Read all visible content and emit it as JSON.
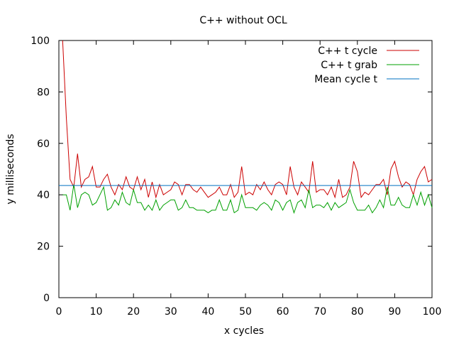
{
  "chart_data": {
    "type": "line",
    "title": "C++ without OCL",
    "xlabel": "x cycles",
    "ylabel": "y milliseconds",
    "xlim": [
      0,
      100
    ],
    "ylim": [
      0,
      100
    ],
    "xticks": [
      0,
      10,
      20,
      30,
      40,
      50,
      60,
      70,
      80,
      90,
      100
    ],
    "yticks": [
      0,
      20,
      40,
      60,
      80,
      100
    ],
    "legend_position": "top-right",
    "series": [
      {
        "name": "C++ t cycle",
        "color": "#cc0000",
        "kind": "line",
        "x": [
          1,
          2,
          3,
          4,
          5,
          6,
          7,
          8,
          9,
          10,
          11,
          12,
          13,
          14,
          15,
          16,
          17,
          18,
          19,
          20,
          21,
          22,
          23,
          24,
          25,
          26,
          27,
          28,
          29,
          30,
          31,
          32,
          33,
          34,
          35,
          36,
          37,
          38,
          39,
          40,
          41,
          42,
          43,
          44,
          45,
          46,
          47,
          48,
          49,
          50,
          51,
          52,
          53,
          54,
          55,
          56,
          57,
          58,
          59,
          60,
          61,
          62,
          63,
          64,
          65,
          66,
          67,
          68,
          69,
          70,
          71,
          72,
          73,
          74,
          75,
          76,
          77,
          78,
          79,
          80,
          81,
          82,
          83,
          84,
          85,
          86,
          87,
          88,
          89,
          90,
          91,
          92,
          93,
          94,
          95,
          96,
          97,
          98,
          99,
          100
        ],
        "y": [
          100,
          70,
          46,
          43,
          56,
          43,
          46,
          47,
          51,
          43,
          43,
          46,
          48,
          43,
          40,
          44,
          42,
          47,
          43,
          42,
          47,
          42,
          46,
          39,
          45,
          39,
          44,
          40,
          41,
          42,
          45,
          44,
          40,
          44,
          44,
          42,
          41,
          43,
          41,
          39,
          40,
          41,
          43,
          40,
          40,
          44,
          39,
          41,
          51,
          40,
          41,
          40,
          44,
          42,
          45,
          42,
          40,
          44,
          45,
          44,
          40,
          51,
          43,
          40,
          45,
          43,
          41,
          53,
          41,
          42,
          42,
          40,
          43,
          39,
          46,
          39,
          40,
          43,
          53,
          49,
          39,
          41,
          40,
          42,
          44,
          44,
          46,
          40,
          50,
          53,
          47,
          43,
          45,
          44,
          40,
          46,
          49,
          51,
          45,
          46
        ]
      },
      {
        "name": "C++ t grab",
        "color": "#00a000",
        "kind": "line",
        "x": [
          1,
          2,
          3,
          4,
          5,
          6,
          7,
          8,
          9,
          10,
          11,
          12,
          13,
          14,
          15,
          16,
          17,
          18,
          19,
          20,
          21,
          22,
          23,
          24,
          25,
          26,
          27,
          28,
          29,
          30,
          31,
          32,
          33,
          34,
          35,
          36,
          37,
          38,
          39,
          40,
          41,
          42,
          43,
          44,
          45,
          46,
          47,
          48,
          49,
          50,
          51,
          52,
          53,
          54,
          55,
          56,
          57,
          58,
          59,
          60,
          61,
          62,
          63,
          64,
          65,
          66,
          67,
          68,
          69,
          70,
          71,
          72,
          73,
          74,
          75,
          76,
          77,
          78,
          79,
          80,
          81,
          82,
          83,
          84,
          85,
          86,
          87,
          88,
          89,
          90,
          91,
          92,
          93,
          94,
          95,
          96,
          97,
          98,
          99,
          100
        ],
        "y": [
          40,
          40,
          34,
          44,
          35,
          40,
          41,
          40,
          36,
          37,
          40,
          43,
          34,
          35,
          38,
          36,
          41,
          37,
          36,
          42,
          37,
          37,
          34,
          36,
          34,
          38,
          34,
          36,
          37,
          38,
          38,
          34,
          35,
          38,
          35,
          35,
          34,
          34,
          34,
          33,
          34,
          34,
          38,
          34,
          34,
          38,
          33,
          34,
          40,
          35,
          35,
          35,
          34,
          36,
          37,
          36,
          34,
          38,
          37,
          34,
          37,
          38,
          33,
          37,
          38,
          35,
          42,
          35,
          36,
          36,
          35,
          37,
          34,
          37,
          35,
          36,
          37,
          42,
          37,
          34,
          34,
          34,
          36,
          33,
          35,
          38,
          35,
          43,
          36,
          36,
          39,
          36,
          35,
          35,
          40,
          36,
          41,
          36,
          40,
          35
        ]
      },
      {
        "name": "Mean cycle t",
        "color": "#0070c0",
        "kind": "hline",
        "value": 43.6
      }
    ]
  }
}
